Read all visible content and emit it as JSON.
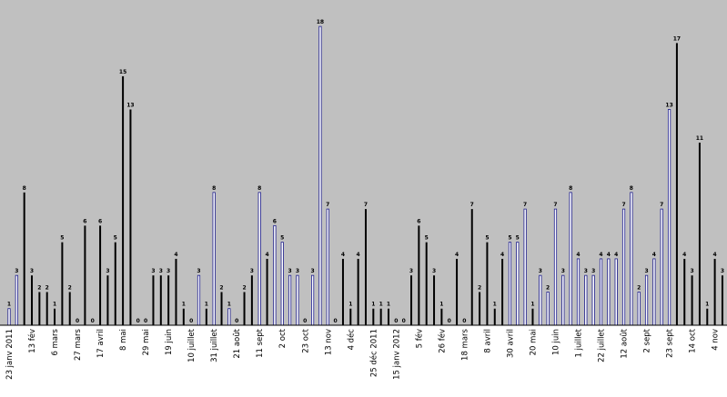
{
  "chart_data": {
    "type": "bar",
    "title": "",
    "xlabel": "",
    "ylabel": "",
    "ylim": [
      0,
      18.5
    ],
    "grid": false,
    "legend": "none",
    "plot_background": "#c0c0c0",
    "series_colors": {
      "black": "#000000",
      "navy": "#1c1c8c"
    },
    "values": [
      1,
      3,
      8,
      3,
      2,
      2,
      1,
      5,
      2,
      0,
      6,
      0,
      6,
      3,
      5,
      15,
      13,
      0,
      0,
      3,
      3,
      3,
      4,
      1,
      0,
      3,
      1,
      8,
      2,
      1,
      0,
      2,
      3,
      8,
      4,
      6,
      5,
      3,
      3,
      0,
      3,
      18,
      7,
      0,
      4,
      1,
      4,
      7,
      1,
      1,
      1,
      0,
      0,
      3,
      6,
      5,
      3,
      1,
      0,
      4,
      0,
      7,
      2,
      5,
      1,
      4,
      5,
      5,
      7,
      1,
      3,
      2,
      7,
      3,
      8,
      4,
      3,
      3,
      4,
      4,
      4,
      7,
      8,
      2,
      3,
      4,
      7,
      13,
      17,
      4,
      3,
      11,
      1,
      4,
      3
    ],
    "colors": [
      "n",
      "n",
      "k",
      "k",
      "k",
      "k",
      "k",
      "k",
      "k",
      "k",
      "k",
      "k",
      "k",
      "k",
      "k",
      "k",
      "k",
      "k",
      "k",
      "k",
      "k",
      "k",
      "k",
      "k",
      "k",
      "n",
      "k",
      "n",
      "k",
      "n",
      "k",
      "k",
      "k",
      "n",
      "k",
      "n",
      "n",
      "n",
      "n",
      "k",
      "n",
      "n",
      "n",
      "k",
      "k",
      "k",
      "k",
      "k",
      "k",
      "k",
      "k",
      "k",
      "k",
      "k",
      "k",
      "k",
      "k",
      "k",
      "k",
      "k",
      "k",
      "k",
      "k",
      "k",
      "k",
      "k",
      "n",
      "n",
      "n",
      "k",
      "n",
      "n",
      "n",
      "n",
      "n",
      "n",
      "n",
      "n",
      "n",
      "n",
      "n",
      "n",
      "n",
      "n",
      "n",
      "n",
      "n",
      "n",
      "k",
      "k",
      "k",
      "k",
      "k",
      "k",
      "k"
    ],
    "tick_labels": [
      "23 janv 2011",
      "13 fév",
      "6 mars",
      "27 mars",
      "17 avril",
      "8 mai",
      "29 mai",
      "19 juin",
      "10 juillet",
      "31 juillet",
      "21 août",
      "11 sept",
      "2 oct",
      "23 oct",
      "13 nov",
      "4 déc",
      "25 déc 2011",
      "15 janv 2012",
      "5 fév",
      "26 fév",
      "18 mars",
      "8 avril",
      "30 avril",
      "20 mai",
      "10 juin",
      "1 juillet",
      "22 juillet",
      "12 août",
      "2 sept",
      "23 sept",
      "14 oct",
      "4 nov"
    ],
    "tick_bar_index": [
      0,
      3,
      6,
      9,
      12,
      15,
      18,
      21,
      24,
      27,
      30,
      33,
      36,
      39,
      42,
      45,
      48,
      51,
      54,
      57,
      60,
      63,
      66,
      69,
      72,
      75,
      78,
      81,
      84,
      87,
      90,
      93
    ]
  }
}
